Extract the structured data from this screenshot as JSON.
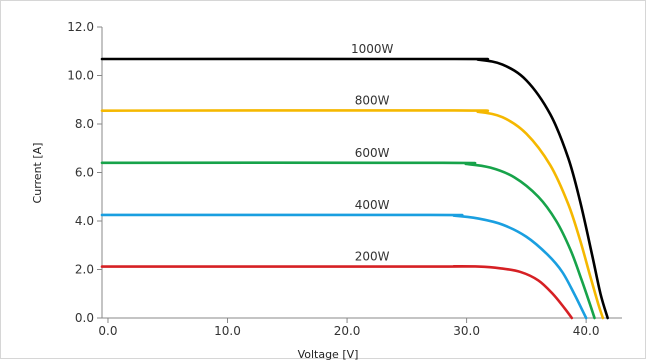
{
  "chart_data": {
    "type": "line",
    "xlabel": "Voltage [V]",
    "ylabel": "Current [A]",
    "xlim": [
      -0.5,
      43
    ],
    "ylim": [
      0,
      12
    ],
    "x_ticks": [
      "0.0",
      "10.0",
      "20.0",
      "30.0",
      "40.0"
    ],
    "x_tick_values": [
      0,
      10,
      20,
      30,
      40
    ],
    "y_ticks": [
      "0.0",
      "2.0",
      "4.0",
      "6.0",
      "8.0",
      "10.0",
      "12.0"
    ],
    "y_tick_values": [
      0,
      2,
      4,
      6,
      8,
      10,
      12
    ],
    "grid": false,
    "legend": "none",
    "series": [
      {
        "name": "1000W",
        "color": "#000000",
        "points": [
          [
            -0.5,
            10.68
          ],
          [
            29,
            10.68
          ],
          [
            31,
            10.65
          ],
          [
            33,
            10.45
          ],
          [
            35,
            9.8
          ],
          [
            37,
            8.4
          ],
          [
            38.5,
            6.6
          ],
          [
            39.5,
            4.8
          ],
          [
            40.5,
            2.6
          ],
          [
            41.2,
            1.0
          ],
          [
            41.8,
            0
          ]
        ]
      },
      {
        "name": "800W",
        "color": "#f5b800",
        "points": [
          [
            -0.5,
            8.55
          ],
          [
            29,
            8.56
          ],
          [
            31,
            8.5
          ],
          [
            33,
            8.28
          ],
          [
            35,
            7.6
          ],
          [
            37,
            6.3
          ],
          [
            38.5,
            4.7
          ],
          [
            39.5,
            3.2
          ],
          [
            40.3,
            1.8
          ],
          [
            41.0,
            0.6
          ],
          [
            41.4,
            0
          ]
        ]
      },
      {
        "name": "600W",
        "color": "#17a34a",
        "points": [
          [
            -0.5,
            6.4
          ],
          [
            28,
            6.4
          ],
          [
            30,
            6.35
          ],
          [
            32,
            6.2
          ],
          [
            34,
            5.8
          ],
          [
            36,
            5.0
          ],
          [
            37.5,
            4.0
          ],
          [
            38.7,
            2.8
          ],
          [
            39.6,
            1.6
          ],
          [
            40.3,
            0.6
          ],
          [
            40.7,
            0
          ]
        ]
      },
      {
        "name": "400W",
        "color": "#1a9fe0",
        "points": [
          [
            -0.5,
            4.25
          ],
          [
            27,
            4.25
          ],
          [
            29,
            4.22
          ],
          [
            31,
            4.1
          ],
          [
            33,
            3.85
          ],
          [
            35,
            3.35
          ],
          [
            36.8,
            2.6
          ],
          [
            38,
            1.9
          ],
          [
            39,
            1.0
          ],
          [
            39.7,
            0.3
          ],
          [
            40.0,
            0
          ]
        ]
      },
      {
        "name": "200W",
        "color": "#d62024",
        "points": [
          [
            -0.5,
            2.12
          ],
          [
            27,
            2.12
          ],
          [
            29,
            2.13
          ],
          [
            31,
            2.12
          ],
          [
            32.8,
            2.05
          ],
          [
            34.5,
            1.9
          ],
          [
            36,
            1.55
          ],
          [
            37.2,
            1.0
          ],
          [
            38.2,
            0.4
          ],
          [
            38.8,
            0
          ]
        ]
      }
    ]
  }
}
